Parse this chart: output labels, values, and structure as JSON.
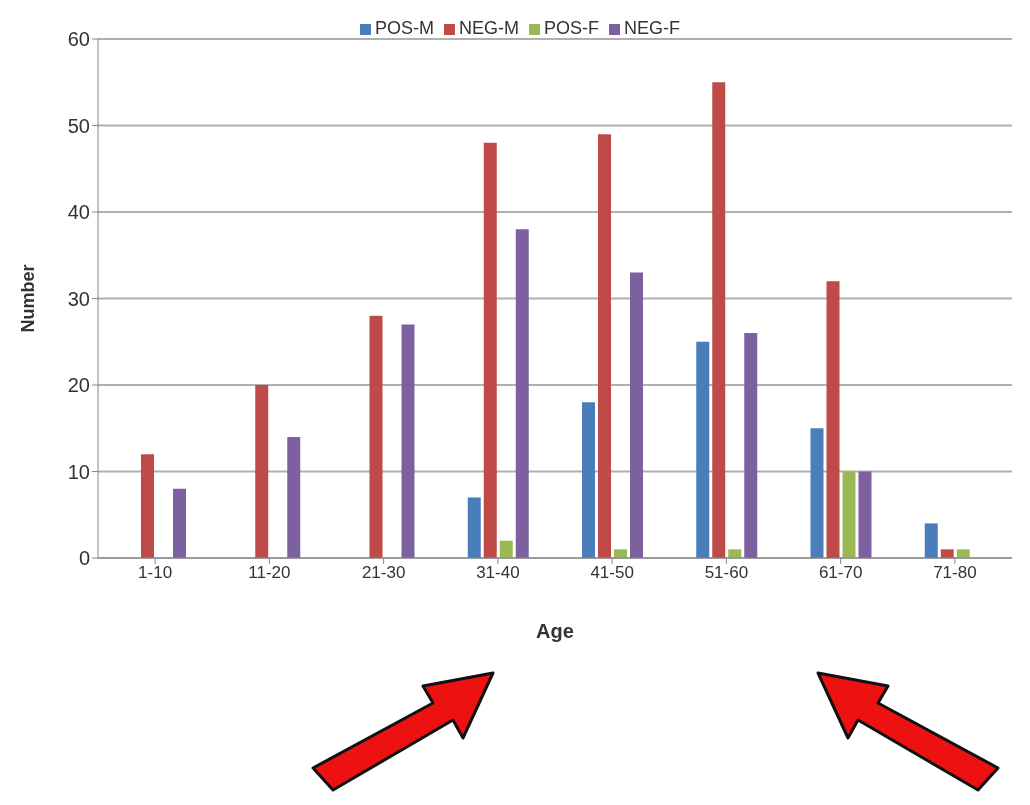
{
  "chart_data": {
    "type": "bar",
    "xlabel": "Age",
    "ylabel": "Number",
    "categories": [
      "1-10",
      "11-20",
      "21-30",
      "31-40",
      "41-50",
      "51-60",
      "61-70",
      "71-80"
    ],
    "series": [
      {
        "name": "POS-M",
        "color": "#4a7ebb",
        "values": [
          0,
          0,
          0,
          7,
          18,
          25,
          15,
          4
        ]
      },
      {
        "name": "NEG-M",
        "color": "#be4b48",
        "values": [
          12,
          20,
          28,
          48,
          49,
          55,
          32,
          1
        ]
      },
      {
        "name": "POS-F",
        "color": "#98b954",
        "values": [
          0,
          0,
          0,
          2,
          1,
          1,
          10,
          1
        ]
      },
      {
        "name": "NEG-F",
        "color": "#7d60a0",
        "values": [
          8,
          14,
          27,
          38,
          33,
          26,
          10,
          0
        ]
      }
    ],
    "ylim": [
      0,
      60
    ],
    "yticks": [
      0,
      10,
      20,
      30,
      40,
      50,
      60
    ],
    "grid": "y",
    "legend": "top"
  }
}
